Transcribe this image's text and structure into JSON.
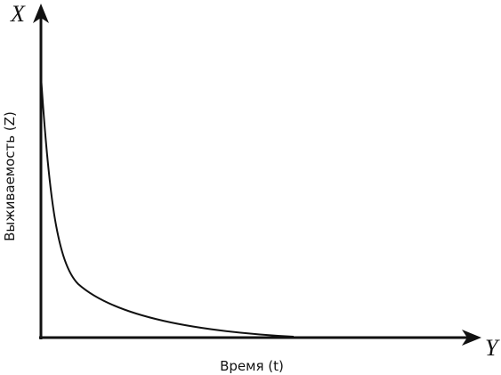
{
  "chart_data": {
    "type": "line",
    "x_axis_letter": "Y",
    "y_axis_letter": "X",
    "x_label": "Время (t)",
    "y_label": "Выживаемость (Z)"
  }
}
